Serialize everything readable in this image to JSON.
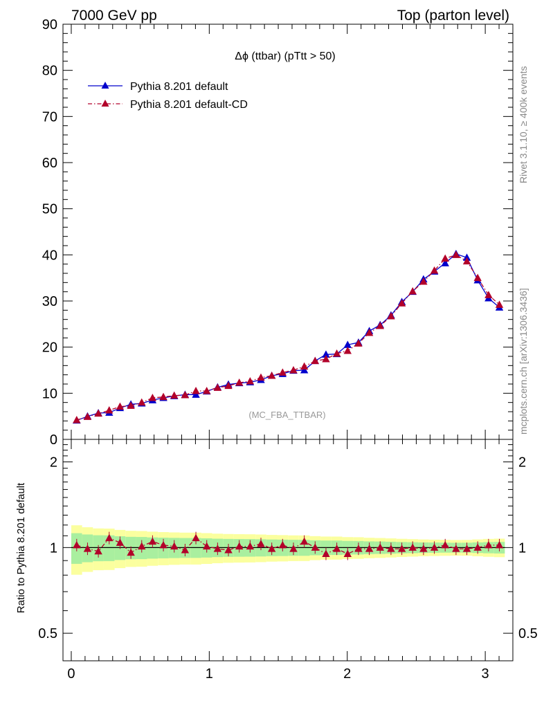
{
  "header": {
    "left": "7000 GeV pp",
    "right": "Top (parton level)"
  },
  "side_labels": {
    "rivet": "Rivet 3.1.10, ≥ 400k events",
    "mcplots": "mcplots.cern.ch [arXiv:1306.3436]"
  },
  "chart_data": [
    {
      "type": "line",
      "panel": "main",
      "title": "Δϕ (ttbar) (pTtt > 50)",
      "watermark": "(MC_FBA_TTBAR)",
      "xlim": [
        -0.06,
        3.2
      ],
      "ylim": [
        0,
        90
      ],
      "yticks": [
        "0",
        "10",
        "20",
        "30",
        "40",
        "50",
        "60",
        "70",
        "80",
        "90"
      ],
      "legend_position": "top-left",
      "series": [
        {
          "name": "Pythia 8.201 default",
          "color": "#0000cc",
          "style": "solid",
          "marker": "triangle",
          "x": [
            0.0393,
            0.1178,
            0.1963,
            0.2749,
            0.3534,
            0.432,
            0.5105,
            0.589,
            0.6676,
            0.7461,
            0.8247,
            0.9032,
            0.9817,
            1.0603,
            1.1388,
            1.2174,
            1.2959,
            1.3744,
            1.453,
            1.5315,
            1.6101,
            1.6886,
            1.7671,
            1.8457,
            1.9242,
            2.0028,
            2.0813,
            2.1598,
            2.2384,
            2.3169,
            2.3955,
            2.474,
            2.5525,
            2.6311,
            2.7096,
            2.7882,
            2.8667,
            2.9452,
            3.0238,
            3.1023
          ],
          "y": [
            4.1,
            5.0,
            5.7,
            5.8,
            6.8,
            7.6,
            7.8,
            8.5,
            9.0,
            9.4,
            9.7,
            9.7,
            10.4,
            11.3,
            11.9,
            12.2,
            12.4,
            12.9,
            13.8,
            14.2,
            14.9,
            15.0,
            17.0,
            18.4,
            18.5,
            20.5,
            21.0,
            23.5,
            24.8,
            26.9,
            29.8,
            32.0,
            34.7,
            36.4,
            38.2,
            40.2,
            39.4,
            34.5,
            30.6,
            28.6
          ]
        },
        {
          "name": "Pythia 8.201 default-CD",
          "color": "#b2002a",
          "style": "dashdot",
          "marker": "triangle",
          "x": [
            0.0393,
            0.1178,
            0.1963,
            0.2749,
            0.3534,
            0.432,
            0.5105,
            0.589,
            0.6676,
            0.7461,
            0.8247,
            0.9032,
            0.9817,
            1.0603,
            1.1388,
            1.2174,
            1.2959,
            1.3744,
            1.453,
            1.5315,
            1.6101,
            1.6886,
            1.7671,
            1.8457,
            1.9242,
            2.0028,
            2.0813,
            2.1598,
            2.2384,
            2.3169,
            2.3955,
            2.474,
            2.5525,
            2.6311,
            2.7096,
            2.7882,
            2.8667,
            2.9452,
            3.0238,
            3.1023
          ],
          "y": [
            4.2,
            4.9,
            5.6,
            6.3,
            7.1,
            7.3,
            8.0,
            9.0,
            9.2,
            9.5,
            9.6,
            10.5,
            10.5,
            11.2,
            11.6,
            12.3,
            12.6,
            13.4,
            13.8,
            14.5,
            15.0,
            15.8,
            17.0,
            17.4,
            18.6,
            19.2,
            20.8,
            23.1,
            24.6,
            26.7,
            29.5,
            32.1,
            34.2,
            36.6,
            39.2,
            40.0,
            38.6,
            35.0,
            31.3,
            29.2
          ]
        }
      ]
    },
    {
      "type": "line",
      "panel": "ratio",
      "ylabel": "Ratio to Pythia 8.201 default",
      "xlim": [
        -0.06,
        3.2
      ],
      "ylim": [
        0.4,
        2.4
      ],
      "yscale": "log",
      "xticks": [
        "0",
        "1",
        "2",
        "3"
      ],
      "yticks": [
        "0.5",
        "1",
        "2"
      ],
      "reference_line": 1,
      "series": [
        {
          "name": "Pythia 8.201 default-CD",
          "color": "#b2002a",
          "style": "dashdot",
          "marker": "triangle",
          "x": [
            0.0393,
            0.1178,
            0.1963,
            0.2749,
            0.3534,
            0.432,
            0.5105,
            0.589,
            0.6676,
            0.7461,
            0.8247,
            0.9032,
            0.9817,
            1.0603,
            1.1388,
            1.2174,
            1.2959,
            1.3744,
            1.453,
            1.5315,
            1.6101,
            1.6886,
            1.7671,
            1.8457,
            1.9242,
            2.0028,
            2.0813,
            2.1598,
            2.2384,
            2.3169,
            2.3955,
            2.474,
            2.5525,
            2.6311,
            2.7096,
            2.7882,
            2.8667,
            2.9452,
            3.0238,
            3.1023
          ],
          "y": [
            1.02,
            0.99,
            0.97,
            1.08,
            1.04,
            0.96,
            1.01,
            1.05,
            1.02,
            1.01,
            0.98,
            1.08,
            1.01,
            0.99,
            0.98,
            1.01,
            1.01,
            1.03,
            0.99,
            1.02,
            0.99,
            1.05,
            1.0,
            0.95,
            0.99,
            0.95,
            0.99,
            0.99,
            1.0,
            0.99,
            0.99,
            1.0,
            0.99,
            1.0,
            1.02,
            0.99,
            0.99,
            1.0,
            1.02,
            1.02
          ]
        }
      ]
    }
  ]
}
